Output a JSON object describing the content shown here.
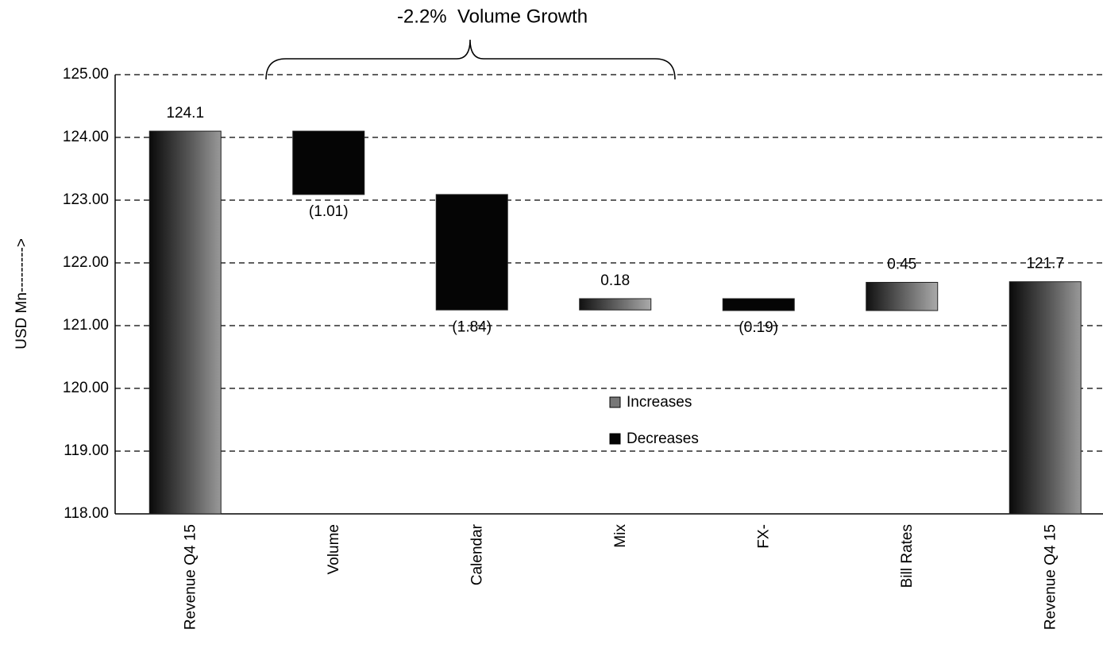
{
  "chart_data": {
    "type": "waterfall",
    "annotation": "-2.2%  Volume Growth",
    "ylabel": "USD Mn--------->",
    "categories": [
      "Revenue Q4 15",
      "Volume",
      "Calendar",
      "Mix",
      "FX-",
      "Bill Rates",
      "Revenue Q4 15"
    ],
    "values": [
      124.1,
      -1.01,
      -1.84,
      0.18,
      -0.19,
      0.45,
      121.7
    ],
    "value_labels": [
      "124.1",
      "(1.01)",
      "(1.84)",
      "0.18",
      "(0.19)",
      "0.45",
      "121.7"
    ],
    "legend": [
      "Increases",
      "Decreases"
    ],
    "colors": {
      "total": "#111111",
      "increase": "#777777",
      "decrease": "#050505"
    },
    "ylim": [
      118,
      125
    ],
    "yticks": [
      {
        "value": 118,
        "label": "118.00"
      },
      {
        "value": 119,
        "label": "119.00"
      },
      {
        "value": 120,
        "label": "120.00"
      },
      {
        "value": 121,
        "label": "121.00"
      },
      {
        "value": 122,
        "label": "122.00"
      },
      {
        "value": 123,
        "label": "123.00"
      },
      {
        "value": 124,
        "label": "124.00"
      },
      {
        "value": 125,
        "label": "125.00"
      }
    ],
    "grid": true
  }
}
